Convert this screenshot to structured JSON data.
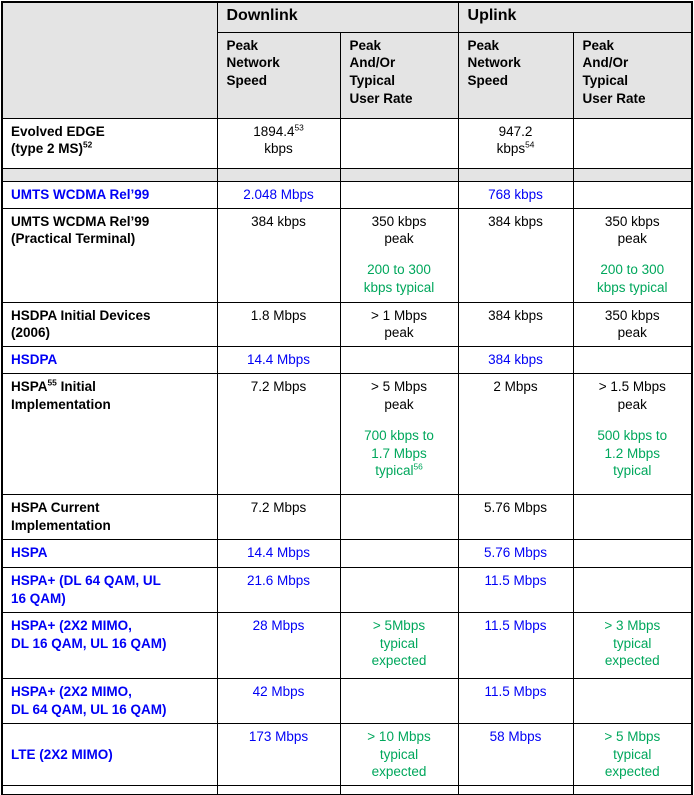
{
  "colors": {
    "blue": "#0000f5",
    "green": "#00a75c",
    "header_bg": "#e4e4e4",
    "border": "#000000"
  },
  "table": {
    "corner_label": "",
    "column_groups": [
      {
        "label": "Downlink"
      },
      {
        "label": "Uplink"
      }
    ],
    "sub_headers": [
      "Peak\nNetwork\nSpeed",
      "Peak\nAnd/Or\nTypical\nUser Rate",
      "Peak\nNetwork\nSpeed",
      "Peak\nAnd/Or\nTypical\nUser Rate"
    ],
    "rows": [
      {
        "label": "Evolved EDGE\n(type 2 MS)^{52}",
        "blue": false,
        "cells": [
          [
            {
              "text": "1894.4^{53}\nkbps"
            }
          ],
          [],
          [
            {
              "text": "947.2\nkbps^{54}"
            }
          ],
          []
        ]
      },
      {
        "separator": true
      },
      {
        "label": "UMTS WCDMA Rel’99",
        "blue": true,
        "cells": [
          [
            {
              "text": "2.048 Mbps"
            }
          ],
          [],
          [
            {
              "text": "768 kbps"
            }
          ],
          []
        ]
      },
      {
        "label": "UMTS WCDMA Rel’99\n(Practical Terminal)",
        "blue": false,
        "cells": [
          [
            {
              "text": "384 kbps"
            }
          ],
          [
            {
              "text": "350 kbps\npeak"
            },
            {
              "text": "200 to 300\nkbps typical",
              "green": true
            }
          ],
          [
            {
              "text": "384 kbps"
            }
          ],
          [
            {
              "text": "350 kbps\npeak"
            },
            {
              "text": "200 to 300\nkbps typical",
              "green": true
            }
          ]
        ]
      },
      {
        "label": "HSDPA Initial Devices\n(2006)",
        "blue": false,
        "cells": [
          [
            {
              "text": "1.8 Mbps"
            }
          ],
          [
            {
              "text": "> 1 Mbps\npeak"
            }
          ],
          [
            {
              "text": "384 kbps"
            }
          ],
          [
            {
              "text": "350 kbps\npeak"
            }
          ]
        ]
      },
      {
        "label": "HSDPA",
        "blue": true,
        "cells": [
          [
            {
              "text": "14.4 Mbps"
            }
          ],
          [],
          [
            {
              "text": "384 kbps"
            }
          ],
          []
        ]
      },
      {
        "label": "HSPA^{55} Initial\nImplementation",
        "blue": false,
        "cells": [
          [
            {
              "text": "7.2 Mbps"
            }
          ],
          [
            {
              "text": "> 5 Mbps\npeak"
            },
            {
              "text": "700 kbps to\n1.7 Mbps\ntypical^{56}",
              "green": true
            }
          ],
          [
            {
              "text": "2 Mbps"
            }
          ],
          [
            {
              "text": "> 1.5 Mbps\npeak"
            },
            {
              "text": "500 kbps to\n1.2 Mbps\ntypical",
              "green": true
            }
          ]
        ]
      },
      {
        "label": "HSPA Current\nImplementation",
        "blue": false,
        "cells": [
          [
            {
              "text": "7.2 Mbps"
            }
          ],
          [],
          [
            {
              "text": "5.76 Mbps"
            }
          ],
          []
        ]
      },
      {
        "label": "HSPA",
        "blue": true,
        "cells": [
          [
            {
              "text": "14.4 Mbps"
            }
          ],
          [],
          [
            {
              "text": "5.76 Mbps"
            }
          ],
          []
        ]
      },
      {
        "label": "HSPA+ (DL 64 QAM, UL\n16 QAM)",
        "blue": true,
        "cells": [
          [
            {
              "text": "21.6 Mbps"
            }
          ],
          [],
          [
            {
              "text": "11.5 Mbps"
            }
          ],
          []
        ]
      },
      {
        "label": "HSPA+ (2X2 MIMO,\nDL 16 QAM, UL 16 QAM)",
        "blue": true,
        "cells": [
          [
            {
              "text": "28 Mbps"
            }
          ],
          [
            {
              "text": "> 5Mbps\ntypical\nexpected",
              "green": true
            }
          ],
          [
            {
              "text": "11.5 Mbps"
            }
          ],
          [
            {
              "text": "> 3 Mbps\ntypical\nexpected",
              "green": true
            }
          ]
        ]
      },
      {
        "label": "HSPA+ (2X2 MIMO,\nDL 64 QAM, UL 16 QAM)",
        "blue": true,
        "cells": [
          [
            {
              "text": "42 Mbps"
            }
          ],
          [],
          [
            {
              "text": "11.5 Mbps"
            }
          ],
          []
        ]
      },
      {
        "label": "LTE (2X2 MIMO)",
        "blue": true,
        "label_middle": true,
        "cells": [
          [
            {
              "text": "173 Mbps"
            }
          ],
          [
            {
              "text": "> 10 Mbps\ntypical\nexpected",
              "green": true
            }
          ],
          [
            {
              "text": "58 Mbps"
            }
          ],
          [
            {
              "text": "> 5 Mbps\ntypical\nexpected",
              "green": true
            }
          ]
        ]
      },
      {
        "cutoff": true
      }
    ]
  }
}
